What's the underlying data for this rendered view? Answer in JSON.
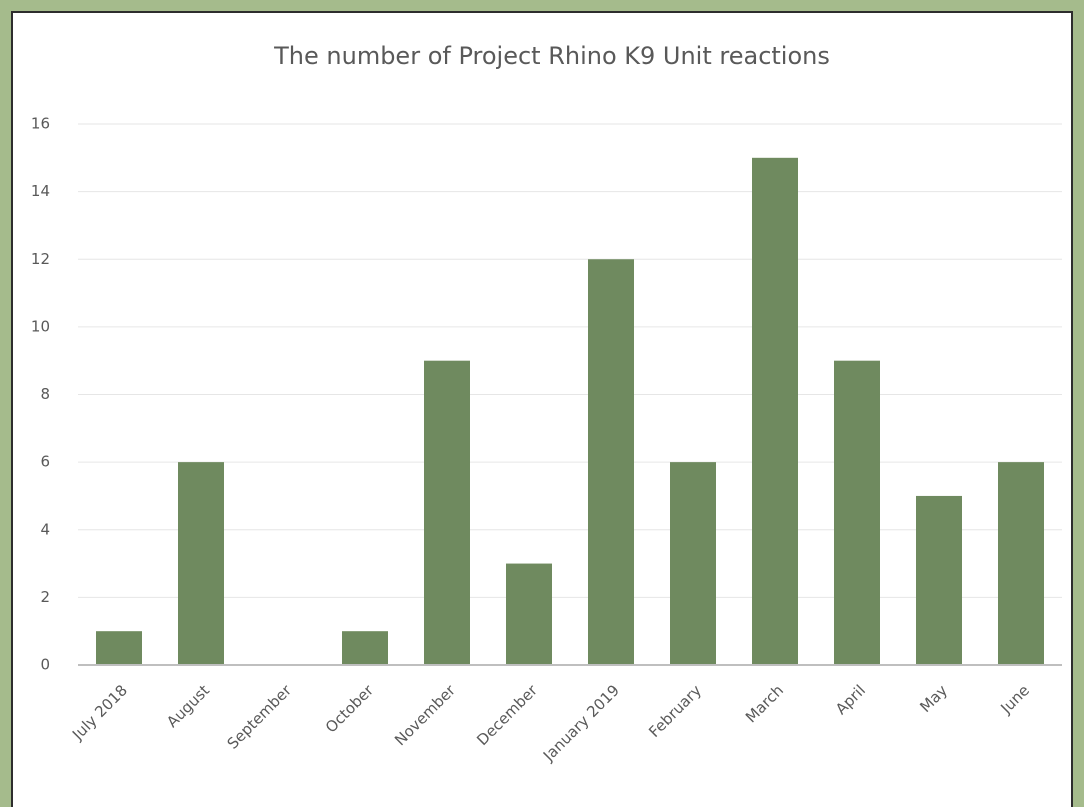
{
  "chart_data": {
    "type": "bar",
    "title": "The number of Project Rhino K9 Unit reactions",
    "categories": [
      "July 2018",
      "August",
      "September",
      "October",
      "November",
      "December",
      "January 2019",
      "February",
      "March",
      "April",
      "May",
      "June"
    ],
    "values": [
      1,
      6,
      0,
      1,
      9,
      3,
      12,
      6,
      15,
      9,
      5,
      6
    ],
    "color": "#6f8a5f",
    "ylim": [
      0,
      16
    ],
    "yticks": [
      0,
      2,
      4,
      6,
      8,
      10,
      12,
      14,
      16
    ],
    "grid": true
  }
}
